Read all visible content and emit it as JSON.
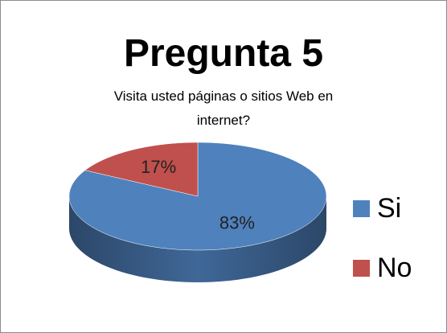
{
  "chart_data": {
    "type": "pie",
    "title": "Pregunta 5",
    "subtitle": "Visita usted páginas o sitios Web en internet?",
    "categories": [
      "Si",
      "No"
    ],
    "values": [
      83,
      17
    ],
    "value_labels": [
      "83%",
      "17%"
    ],
    "colors": [
      "#4f81bd",
      "#c0504d"
    ],
    "legend": "right"
  }
}
